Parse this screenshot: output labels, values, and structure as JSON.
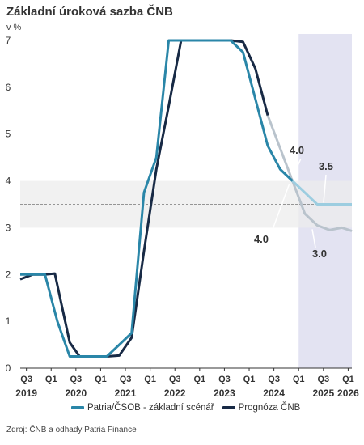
{
  "header": {
    "title": "Základní úroková sazba ČNB",
    "unit": "v %"
  },
  "legend": {
    "patria": "Patria/ČSOB - základní scénář",
    "cnb": "Prognóza ČNB"
  },
  "source": "Zdroj: ČNB a odhady Patria Finance",
  "colors": {
    "patria": "#2a86a8",
    "patria_forecast": "#9ccde0",
    "cnb": "#182a45",
    "cnb_forecast": "#b9c3cc",
    "forecast_band": "#e3e3f2",
    "neutral_band": "#ececec"
  },
  "chart_data": {
    "type": "line",
    "ylim": [
      0,
      7
    ],
    "yticks": [
      0,
      1,
      2,
      3,
      4,
      5,
      6,
      7
    ],
    "xlim": [
      2019.5,
      2026.2
    ],
    "x_quarter_labels": [
      {
        "x": 2019.625,
        "q": "Q3",
        "year": "2019"
      },
      {
        "x": 2020.125,
        "q": "Q1",
        "year": ""
      },
      {
        "x": 2020.625,
        "q": "Q3",
        "year": "2020"
      },
      {
        "x": 2021.125,
        "q": "Q1",
        "year": ""
      },
      {
        "x": 2021.625,
        "q": "Q3",
        "year": "2021"
      },
      {
        "x": 2022.125,
        "q": "Q1",
        "year": ""
      },
      {
        "x": 2022.625,
        "q": "Q3",
        "year": "2022"
      },
      {
        "x": 2023.125,
        "q": "Q1",
        "year": ""
      },
      {
        "x": 2023.625,
        "q": "Q3",
        "year": "2023"
      },
      {
        "x": 2024.125,
        "q": "Q1",
        "year": ""
      },
      {
        "x": 2024.625,
        "q": "Q3",
        "year": "2024"
      },
      {
        "x": 2025.125,
        "q": "Q1",
        "year": ""
      },
      {
        "x": 2025.625,
        "q": "Q3",
        "year": "2025"
      },
      {
        "x": 2026.125,
        "q": "Q1",
        "year": "2026"
      }
    ],
    "forecast_start": 2025.125,
    "neutral_band": [
      3.0,
      4.0
    ],
    "neutral_line": 3.5,
    "series": [
      {
        "name": "Patria/ČSOB - základní scénář",
        "actual": [
          [
            2019.5,
            2.0
          ],
          [
            2019.75,
            2.0
          ],
          [
            2020.0,
            2.0
          ],
          [
            2020.25,
            1.0
          ],
          [
            2020.5,
            0.25
          ],
          [
            2020.75,
            0.25
          ],
          [
            2021.0,
            0.25
          ],
          [
            2021.25,
            0.25
          ],
          [
            2021.5,
            0.5
          ],
          [
            2021.75,
            0.75
          ],
          [
            2022.0,
            3.75
          ],
          [
            2022.25,
            4.5
          ],
          [
            2022.5,
            7.0
          ],
          [
            2022.75,
            7.0
          ],
          [
            2023.0,
            7.0
          ],
          [
            2023.25,
            7.0
          ],
          [
            2023.5,
            7.0
          ],
          [
            2023.75,
            7.0
          ],
          [
            2024.0,
            6.75
          ],
          [
            2024.25,
            5.75
          ],
          [
            2024.5,
            4.75
          ],
          [
            2024.75,
            4.25
          ],
          [
            2025.0,
            4.0
          ]
        ],
        "forecast": [
          [
            2025.0,
            4.0
          ],
          [
            2025.25,
            3.75
          ],
          [
            2025.5,
            3.5
          ],
          [
            2025.75,
            3.5
          ],
          [
            2026.0,
            3.5
          ],
          [
            2026.2,
            3.5
          ]
        ]
      },
      {
        "name": "Prognóza ČNB",
        "actual": [
          [
            2019.5,
            1.9
          ],
          [
            2019.75,
            2.0
          ],
          [
            2020.0,
            2.0
          ],
          [
            2020.2,
            2.02
          ],
          [
            2020.5,
            0.55
          ],
          [
            2020.7,
            0.25
          ],
          [
            2021.0,
            0.25
          ],
          [
            2021.25,
            0.25
          ],
          [
            2021.5,
            0.27
          ],
          [
            2021.75,
            0.65
          ],
          [
            2022.0,
            2.5
          ],
          [
            2022.25,
            4.25
          ],
          [
            2022.5,
            5.6
          ],
          [
            2022.75,
            7.0
          ],
          [
            2023.0,
            7.0
          ],
          [
            2023.25,
            7.0
          ],
          [
            2023.5,
            7.0
          ],
          [
            2023.75,
            7.0
          ],
          [
            2024.0,
            6.97
          ],
          [
            2024.25,
            6.4
          ],
          [
            2024.5,
            5.4
          ]
        ],
        "forecast": [
          [
            2024.5,
            5.4
          ],
          [
            2024.75,
            4.7
          ],
          [
            2025.0,
            4.0
          ],
          [
            2025.25,
            3.3
          ],
          [
            2025.5,
            3.05
          ],
          [
            2025.75,
            2.95
          ],
          [
            2026.0,
            3.0
          ],
          [
            2026.2,
            2.93
          ]
        ]
      }
    ],
    "annotations": [
      {
        "text": "4.0"
      },
      {
        "text": "4.0"
      },
      {
        "text": "3.5"
      },
      {
        "text": "3.0"
      }
    ]
  }
}
